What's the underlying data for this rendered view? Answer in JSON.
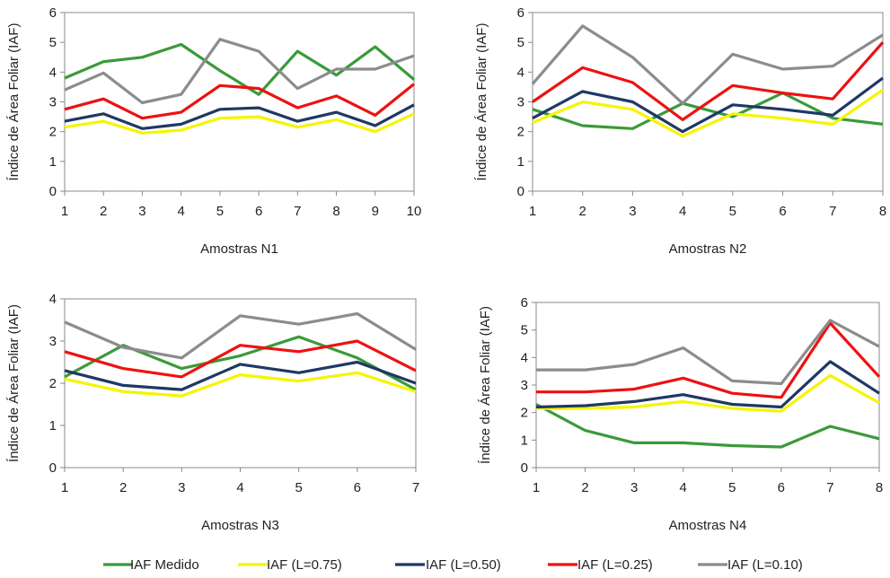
{
  "series_styles": [
    {
      "key": "medido",
      "color": "#3a9a3a"
    },
    {
      "key": "l075",
      "color": "#f5f500"
    },
    {
      "key": "l050",
      "color": "#1f3864"
    },
    {
      "key": "l025",
      "color": "#ee1111"
    },
    {
      "key": "l010",
      "color": "#8c8c8c"
    }
  ],
  "legend": {
    "items": [
      {
        "key": "medido",
        "label": "IAF Medido"
      },
      {
        "key": "l075",
        "label": "IAF (L=0.75)"
      },
      {
        "key": "l050",
        "label": "IAF (L=0.50)"
      },
      {
        "key": "l025",
        "label": "IAF (L=0.25)"
      },
      {
        "key": "l010",
        "label": "IAF (L=0.10)"
      }
    ]
  },
  "chart_data": [
    {
      "type": "line",
      "xlabel": "Amostras N1",
      "ylabel": "Índice de Área Foliar (IAF)",
      "x": [
        1,
        2,
        3,
        4,
        5,
        6,
        7,
        8,
        9,
        10
      ],
      "ylim": [
        0,
        6
      ],
      "yticks": [
        0,
        1,
        2,
        3,
        4,
        5,
        6
      ],
      "grid": false,
      "series": [
        {
          "key": "medido",
          "values": [
            3.8,
            4.35,
            4.5,
            4.93,
            4.05,
            3.25,
            4.7,
            3.9,
            4.85,
            3.75
          ]
        },
        {
          "key": "l075",
          "values": [
            2.15,
            2.35,
            1.95,
            2.05,
            2.45,
            2.5,
            2.15,
            2.4,
            2.0,
            2.6
          ]
        },
        {
          "key": "l050",
          "values": [
            2.35,
            2.6,
            2.1,
            2.25,
            2.75,
            2.8,
            2.35,
            2.65,
            2.2,
            2.9
          ]
        },
        {
          "key": "l025",
          "values": [
            2.75,
            3.1,
            2.45,
            2.65,
            3.55,
            3.45,
            2.8,
            3.2,
            2.55,
            3.6
          ]
        },
        {
          "key": "l010",
          "values": [
            3.4,
            3.97,
            2.97,
            3.25,
            5.1,
            4.7,
            3.45,
            4.1,
            4.1,
            4.55
          ]
        }
      ]
    },
    {
      "type": "line",
      "xlabel": "Amostras N2",
      "ylabel": "Índice de Área Foliar (IAF)",
      "x": [
        1,
        2,
        3,
        4,
        5,
        6,
        7,
        8
      ],
      "ylim": [
        0,
        6
      ],
      "yticks": [
        0,
        1,
        2,
        3,
        4,
        5,
        6
      ],
      "grid": false,
      "series": [
        {
          "key": "medido",
          "values": [
            2.75,
            2.2,
            2.1,
            2.95,
            2.5,
            3.3,
            2.45,
            2.25
          ]
        },
        {
          "key": "l075",
          "values": [
            2.3,
            3.0,
            2.75,
            1.85,
            2.6,
            2.45,
            2.25,
            3.4
          ]
        },
        {
          "key": "l050",
          "values": [
            2.45,
            3.35,
            3.0,
            2.0,
            2.9,
            2.75,
            2.55,
            3.8
          ]
        },
        {
          "key": "l025",
          "values": [
            3.0,
            4.15,
            3.65,
            2.4,
            3.55,
            3.3,
            3.1,
            5.0
          ]
        },
        {
          "key": "l010",
          "values": [
            3.6,
            5.55,
            4.5,
            2.95,
            4.6,
            4.1,
            4.2,
            5.25
          ]
        }
      ]
    },
    {
      "type": "line",
      "xlabel": "Amostras N3",
      "ylabel": "Índice de Área Foliar (IAF)",
      "x": [
        1,
        2,
        3,
        4,
        5,
        6,
        7
      ],
      "ylim": [
        0,
        4
      ],
      "yticks": [
        0,
        1,
        2,
        3,
        4
      ],
      "grid": false,
      "series": [
        {
          "key": "medido",
          "values": [
            2.15,
            2.9,
            2.35,
            2.65,
            3.1,
            2.6,
            1.85
          ]
        },
        {
          "key": "l075",
          "values": [
            2.1,
            1.8,
            1.7,
            2.2,
            2.05,
            2.25,
            1.8
          ]
        },
        {
          "key": "l050",
          "values": [
            2.3,
            1.95,
            1.85,
            2.45,
            2.25,
            2.5,
            2.0
          ]
        },
        {
          "key": "l025",
          "values": [
            2.75,
            2.35,
            2.15,
            2.9,
            2.75,
            3.0,
            2.3
          ]
        },
        {
          "key": "l010",
          "values": [
            3.45,
            2.85,
            2.6,
            3.6,
            3.4,
            3.65,
            2.8
          ]
        }
      ]
    },
    {
      "type": "line",
      "xlabel": "Amostras N4",
      "ylabel": "Índice de Área Foliar (IAF)",
      "x": [
        1,
        2,
        3,
        4,
        5,
        6,
        7,
        8
      ],
      "ylim": [
        0,
        6
      ],
      "yticks": [
        0,
        1,
        2,
        3,
        4,
        5,
        6
      ],
      "grid": false,
      "series": [
        {
          "key": "medido",
          "values": [
            2.3,
            1.35,
            0.9,
            0.9,
            0.8,
            0.75,
            1.5,
            1.05
          ]
        },
        {
          "key": "l075",
          "values": [
            2.15,
            2.15,
            2.2,
            2.4,
            2.15,
            2.05,
            3.35,
            2.35
          ]
        },
        {
          "key": "l050",
          "values": [
            2.2,
            2.25,
            2.4,
            2.65,
            2.3,
            2.2,
            3.85,
            2.7
          ]
        },
        {
          "key": "l025",
          "values": [
            2.75,
            2.75,
            2.85,
            3.25,
            2.7,
            2.55,
            5.25,
            3.3
          ]
        },
        {
          "key": "l010",
          "values": [
            3.55,
            3.55,
            3.75,
            4.35,
            3.15,
            3.05,
            5.35,
            4.4
          ]
        }
      ]
    }
  ]
}
